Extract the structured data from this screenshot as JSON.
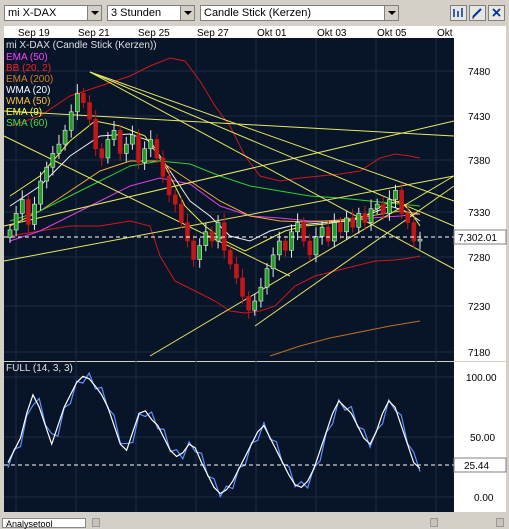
{
  "toolbar": {
    "instrument": "mi X-DAX",
    "interval": "3 Stunden",
    "chart_type": "Candle Stick (Kerzen)",
    "icons": [
      "chart-bars-icon",
      "edit-icon",
      "close-icon"
    ]
  },
  "chart": {
    "title": "mi X-DAX (Candle Stick (Kerzen))",
    "date_labels": [
      "Sep 19",
      "Sep 21",
      "Sep 25",
      "Sep 27",
      "Okt 01",
      "Okt 03",
      "Okt 05",
      "Okt"
    ],
    "price_ticks": [
      "7480",
      "7430",
      "7380",
      "7330",
      "7280",
      "7230",
      "7180"
    ],
    "current_price": "7,302.01",
    "legend": [
      {
        "label": "EMA (50)",
        "color": "#ff40ff"
      },
      {
        "label": "BB (20, 2)",
        "color": "#ff2020"
      },
      {
        "label": "EMA (200)",
        "color": "#d08020"
      },
      {
        "label": "WMA (20)",
        "color": "#ffffff"
      },
      {
        "label": "WMA (50)",
        "color": "#ffc040"
      },
      {
        "label": "EMA (9)",
        "color": "#ffff40"
      },
      {
        "label": "SMA (60)",
        "color": "#40e040"
      }
    ]
  },
  "oscillator": {
    "title": "FULL (14, 3, 3)",
    "ticks": [
      "100.00",
      "50.00",
      "0.00"
    ],
    "current_value": "25.44"
  },
  "statusbar": {
    "tab_label": "Analysetool"
  },
  "chart_data": [
    {
      "type": "candlestick",
      "title": "mi X-DAX (Candle Stick (Kerzen))",
      "x_labels": [
        "Sep 19",
        "Sep 21",
        "Sep 25",
        "Sep 27",
        "Okt 01",
        "Okt 03",
        "Okt 05",
        "Okt"
      ],
      "ylim": [
        7170,
        7520
      ],
      "y_ticks": [
        7180,
        7230,
        7280,
        7330,
        7380,
        7430,
        7480
      ],
      "last_value": 7302.01,
      "close": [
        7312,
        7330,
        7345,
        7318,
        7340,
        7365,
        7380,
        7395,
        7405,
        7420,
        7440,
        7460,
        7450,
        7432,
        7400,
        7390,
        7410,
        7420,
        7395,
        7405,
        7415,
        7385,
        7400,
        7410,
        7390,
        7370,
        7350,
        7340,
        7320,
        7300,
        7280,
        7295,
        7310,
        7300,
        7320,
        7290,
        7275,
        7260,
        7240,
        7225,
        7235,
        7250,
        7270,
        7285,
        7300,
        7290,
        7310,
        7320,
        7300,
        7285,
        7305,
        7315,
        7300,
        7320,
        7310,
        7325,
        7315,
        7330,
        7320,
        7335,
        7340,
        7330,
        7345,
        7355,
        7330,
        7320,
        7300,
        7302
      ]
    },
    {
      "type": "line",
      "title": "FULL (14, 3, 3)",
      "ylim": [
        -10,
        110
      ],
      "y_ticks": [
        0,
        50,
        100
      ],
      "last_value": 25.44,
      "series": [
        {
          "values": [
            30,
            40,
            50,
            70,
            85,
            75,
            60,
            45,
            60,
            75,
            85,
            95,
            100,
            98,
            92,
            85,
            75,
            60,
            45,
            40,
            55,
            70,
            72,
            65,
            60,
            50,
            40,
            35,
            38,
            45,
            42,
            30,
            20,
            10,
            5,
            8,
            15,
            25,
            35,
            45,
            55,
            60,
            50,
            40,
            30,
            20,
            12,
            10,
            15,
            25,
            40,
            55,
            70,
            80,
            75,
            70,
            60,
            50,
            45,
            55,
            70,
            80,
            75,
            60,
            45,
            30,
            25.44
          ]
        }
      ]
    }
  ]
}
